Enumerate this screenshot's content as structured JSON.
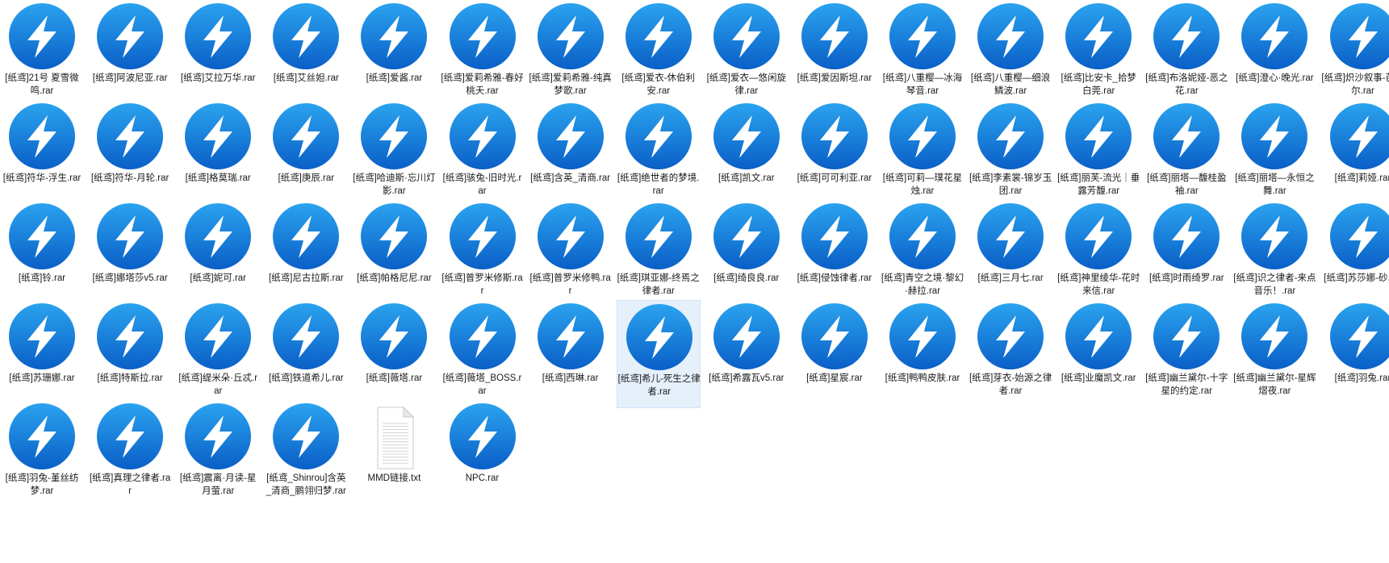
{
  "window": {
    "view": "large-icons"
  },
  "colors": {
    "archive_icon_gradient_top": "#2aa3ef",
    "archive_icon_gradient_bottom": "#0a5fc7",
    "selection_bg": "#e6f0fb",
    "label_text": "#1a1a1a"
  },
  "files": [
    {
      "name": "[纸鸢]21号 夏雪微鸣.rar",
      "type": "archive"
    },
    {
      "name": "[纸鸢]阿波尼亚.rar",
      "type": "archive"
    },
    {
      "name": "[纸鸢]艾拉万华.rar",
      "type": "archive"
    },
    {
      "name": "[纸鸢]艾丝妲.rar",
      "type": "archive"
    },
    {
      "name": "[纸鸢]爱酱.rar",
      "type": "archive"
    },
    {
      "name": "[纸鸢]爱莉希雅-春好桃夭.rar",
      "type": "archive"
    },
    {
      "name": "[纸鸢]爱莉希雅-纯真梦歌.rar",
      "type": "archive"
    },
    {
      "name": "[纸鸢]爱衣-休伯利安.rar",
      "type": "archive"
    },
    {
      "name": "[纸鸢]爱衣—悠闲旋律.rar",
      "type": "archive"
    },
    {
      "name": "[纸鸢]爱因斯坦.rar",
      "type": "archive"
    },
    {
      "name": "[纸鸢]八重樱—冰海琴音.rar",
      "type": "archive"
    },
    {
      "name": "[纸鸢]八重樱—细浪鳞波.rar",
      "type": "archive"
    },
    {
      "name": "[纸鸢]比安卡_拾梦白莞.rar",
      "type": "archive"
    },
    {
      "name": "[纸鸢]布洛妮娅-恶之花.rar",
      "type": "archive"
    },
    {
      "name": "[纸鸢]澄心·晚光.rar",
      "type": "archive"
    },
    {
      "name": "[纸鸢]炽沙叙事-芭别尔.rar",
      "type": "archive"
    },
    {
      "name": "[纸鸢]符华-浮生.rar",
      "type": "archive"
    },
    {
      "name": "[纸鸢]符华-月轮.rar",
      "type": "archive"
    },
    {
      "name": "[纸鸢]格莫瑞.rar",
      "type": "archive"
    },
    {
      "name": "[纸鸢]庚辰.rar",
      "type": "archive"
    },
    {
      "name": "[纸鸢]哈迪斯·忘川灯影.rar",
      "type": "archive"
    },
    {
      "name": "[纸鸢]骇兔-旧时光.rar",
      "type": "archive"
    },
    {
      "name": "[纸鸢]含英_清商.rar",
      "type": "archive"
    },
    {
      "name": "[纸鸢]绝世者的梦境.rar",
      "type": "archive"
    },
    {
      "name": "[纸鸢]凯文.rar",
      "type": "archive"
    },
    {
      "name": "[纸鸢]可可利亚.rar",
      "type": "archive"
    },
    {
      "name": "[纸鸢]可莉—璞花星烛.rar",
      "type": "archive"
    },
    {
      "name": "[纸鸢]李素裳-锦岁玉团.rar",
      "type": "archive"
    },
    {
      "name": "[纸鸢]丽芙-流光｜垂露芳馥.rar",
      "type": "archive"
    },
    {
      "name": "[纸鸢]丽塔—馥桂盈袖.rar",
      "type": "archive"
    },
    {
      "name": "[纸鸢]丽塔—永恒之舞.rar",
      "type": "archive"
    },
    {
      "name": "[纸鸢]莉娅.rar",
      "type": "archive"
    },
    {
      "name": "[纸鸢]铃.rar",
      "type": "archive"
    },
    {
      "name": "[纸鸢]娜塔莎v5.rar",
      "type": "archive"
    },
    {
      "name": "[纸鸢]妮可.rar",
      "type": "archive"
    },
    {
      "name": "[纸鸢]尼古拉斯.rar",
      "type": "archive"
    },
    {
      "name": "[纸鸢]帕格尼尼.rar",
      "type": "archive"
    },
    {
      "name": "[纸鸢]普罗米修斯.rar",
      "type": "archive"
    },
    {
      "name": "[纸鸢]普罗米修鸭.rar",
      "type": "archive"
    },
    {
      "name": "[纸鸢]琪亚娜-终焉之律者.rar",
      "type": "archive"
    },
    {
      "name": "[纸鸢]绮良良.rar",
      "type": "archive"
    },
    {
      "name": "[纸鸢]侵蚀律者.rar",
      "type": "archive"
    },
    {
      "name": "[纸鸢]青空之境·黎幻·赫拉.rar",
      "type": "archive"
    },
    {
      "name": "[纸鸢]三月七.rar",
      "type": "archive"
    },
    {
      "name": "[纸鸢]神里绫华-花时来信.rar",
      "type": "archive"
    },
    {
      "name": "[纸鸢]时雨绮罗.rar",
      "type": "archive"
    },
    {
      "name": "[纸鸢]识之律者-来点音乐！.rar",
      "type": "archive"
    },
    {
      "name": "[纸鸢]苏莎娜-砂.rar",
      "type": "archive"
    },
    {
      "name": "[纸鸢]苏珊娜.rar",
      "type": "archive"
    },
    {
      "name": "[纸鸢]特斯拉.rar",
      "type": "archive"
    },
    {
      "name": "[纸鸢]缇米朵·丘忒.rar",
      "type": "archive"
    },
    {
      "name": "[纸鸢]铁道希儿.rar",
      "type": "archive"
    },
    {
      "name": "[纸鸢]薇塔.rar",
      "type": "archive"
    },
    {
      "name": "[纸鸢]薇塔_BOSS.rar",
      "type": "archive"
    },
    {
      "name": "[纸鸢]西琳.rar",
      "type": "archive"
    },
    {
      "name": "[纸鸢]希儿-死生之律者.rar",
      "type": "archive",
      "selected": true
    },
    {
      "name": "[纸鸢]希露瓦v5.rar",
      "type": "archive"
    },
    {
      "name": "[纸鸢]星宸.rar",
      "type": "archive"
    },
    {
      "name": "[纸鸢]鸭鸭皮肤.rar",
      "type": "archive"
    },
    {
      "name": "[纸鸢]芽衣-始源之律者.rar",
      "type": "archive"
    },
    {
      "name": "[纸鸢]业魔凯文.rar",
      "type": "archive"
    },
    {
      "name": "[纸鸢]幽兰黛尔-十字星的约定.rar",
      "type": "archive"
    },
    {
      "name": "[纸鸢]幽兰黛尔-星辉熠夜.rar",
      "type": "archive"
    },
    {
      "name": "[纸鸢]羽兔.rar",
      "type": "archive"
    },
    {
      "name": "[纸鸢]羽兔-堇丝纺梦.rar",
      "type": "archive"
    },
    {
      "name": "[纸鸢]真理之律者.rar",
      "type": "archive"
    },
    {
      "name": "[纸鸢]震离·月读-星月萤.rar",
      "type": "archive"
    },
    {
      "name": "[纸鸢_Shinrou]含英_清商_鹂翎归梦.rar",
      "type": "archive"
    },
    {
      "name": "MMD链接.txt",
      "type": "text"
    },
    {
      "name": "NPC.rar",
      "type": "archive"
    }
  ]
}
